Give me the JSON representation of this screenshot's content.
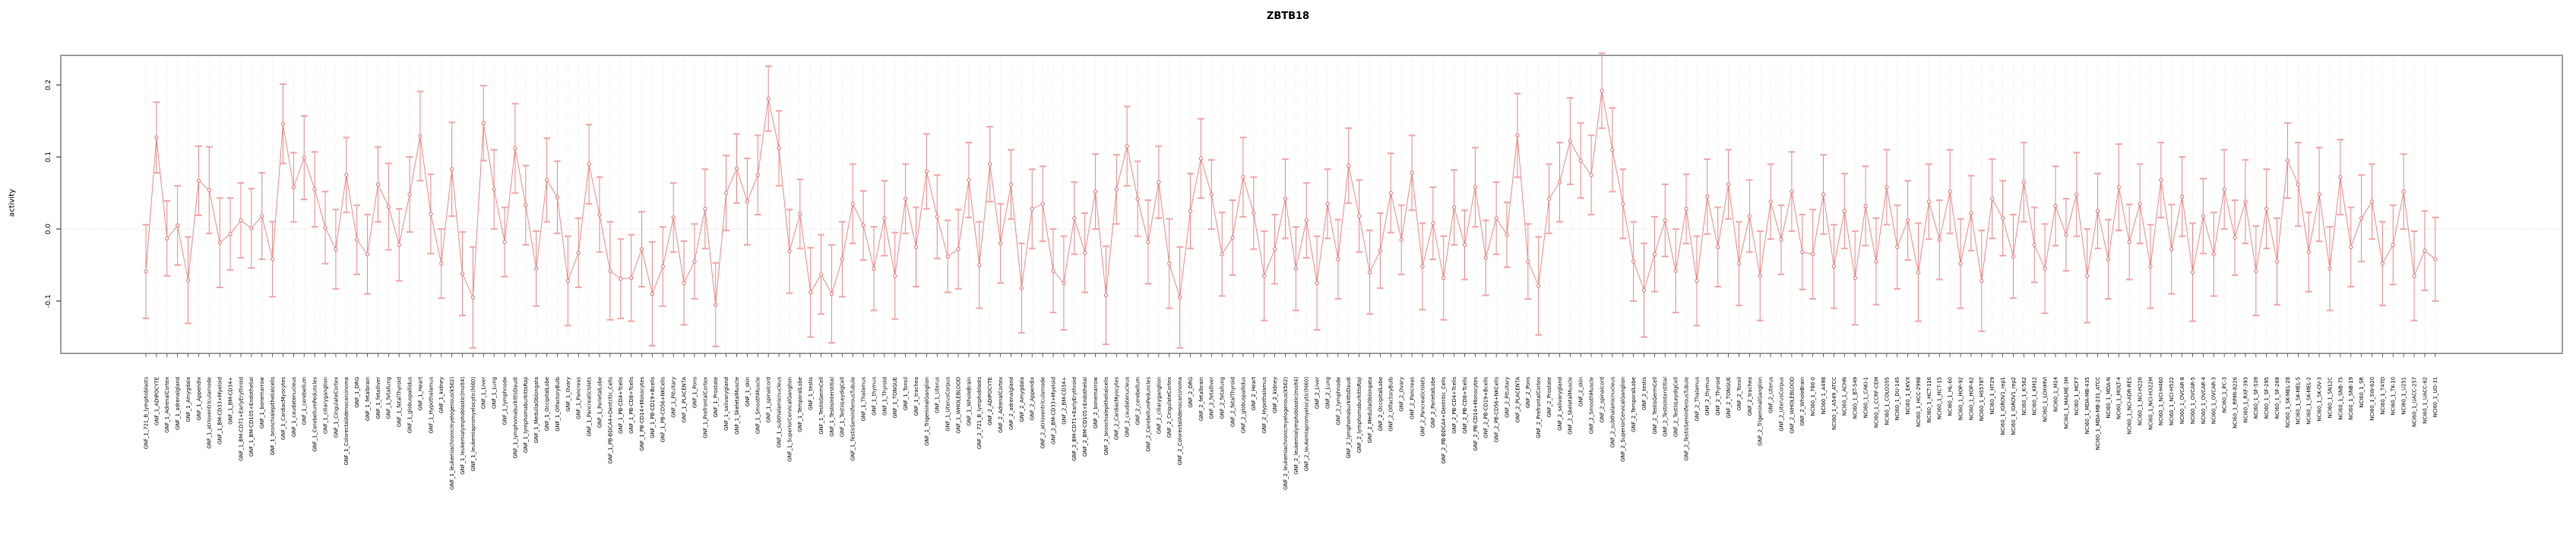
{
  "title": "ZBTB18",
  "chart_data": {
    "type": "line",
    "title": "ZBTB18",
    "subtitle": "",
    "xlabel": "",
    "ylabel": "activity",
    "legend": "none",
    "grid": "vertical dotted line per category; horizontal dotted line at 0",
    "marker": "open-circle with symmetric error bars and caps",
    "ylim": [
      -0.173,
      0.241
    ],
    "yticks": {
      "values": [
        0.2,
        0.1,
        0.0,
        -0.1
      ],
      "labels": [
        "0.2",
        "0.1",
        "0.0",
        "-0.1"
      ]
    },
    "colors": {
      "series": "#ee7d7d",
      "error_bar": "#ef8585",
      "cap": "#f3a8a8",
      "marker_stroke": "#e97070",
      "marker_fill": "#ffffff",
      "gridline": "#d9d9d9",
      "zero_line": "#c9c9c9",
      "frame": "#9e9e9e",
      "tick": "#444444",
      "text": "#000000"
    },
    "categories": [
      "GNF_1_721_B_lymphoblasts",
      "GNF_1_ADIPOCYTE",
      "GNF_1_AdrenalCortex",
      "GNF_1_adrenalgland",
      "GNF_1_Amygdala",
      "GNF_1_Appendix",
      "GNF_1_atrioventricularnode",
      "GNF_1_BM-CD33+Myeloid",
      "GNF_1_BM-CD34+",
      "GNF_1_BM-CD71+EarlyErythroid",
      "GNF_1_BM-CD105+Endothelial",
      "GNF_1_bonemarrow",
      "GNF_1_bronchialepithelialcells",
      "GNF_1_CardiacMyocytes",
      "GNF_1_caudatenucleus",
      "GNF_1_cerebellum",
      "GNF_1_CerebellumPeduncles",
      "GNF_1_ciliaryganglion",
      "GNF_1_CingulateCortex",
      "GNF_1_ColorectalAdenocarcinoma",
      "GNF_1_DRG",
      "GNF_1_fetalbrain",
      "GNF_1_fetalliver",
      "GNF_1_fetallung",
      "GNF_1_fetalThyroid",
      "GNF_1_globuspallidus",
      "GNF_1_Heart",
      "GNF_1_Hypothalamus",
      "GNF_1_kidney",
      "GNF_1_leukemiachronicmyelogenous(k562)",
      "GNF_1_leukemialymphoblastic(molt4)",
      "GNF_1_leukemiapromyelocytic(hl60)",
      "GNF_1_Liver",
      "GNF_1_Lung",
      "GNF_1_lymphnode",
      "GNF_1_lymphomaburkittsDaudi",
      "GNF_1_lymphomaburkittsRaji",
      "GNF_1_MedullaOblongata",
      "GNF_1_OccipitalLobe",
      "GNF_1_OlfactoryBulb",
      "GNF_1_Ovary",
      "GNF_1_Pancreas",
      "GNF_1_PancreaticIslets",
      "GNF_1_ParietalLobe",
      "GNF_1_PB-BDCA4+Dentritic_Cells",
      "GNF_1_PB-CD4+Tcells",
      "GNF_1_PB-CD8+Tcells",
      "GNF_1_PB-CD14+Monocytes",
      "GNF_1_PB-CD19+Bcells",
      "GNF_1_PB-CD56+NKCells",
      "GNF_1_Pituitary",
      "GNF_1_PLACENTA",
      "GNF_1_Pons",
      "GNF_1_PrefrontalCortex",
      "GNF_1_Prostate",
      "GNF_1_salivarygland",
      "GNF_1_SkeletalMuscle",
      "GNF_1_skin",
      "GNF_1_SmoothMuscle",
      "GNF_1_spinalcord",
      "GNF_1_subthalamicnucleus",
      "GNF_1_SuperiorCervicalGanglion",
      "GNF_1_TemporalLobe",
      "GNF_1_testis",
      "GNF_1_TestisGermCell",
      "GNF_1_TestisInterstitial",
      "GNF_1_TestisLeydigCell",
      "GNF_1_TestisSeminiferousTubule",
      "GNF_1_Thalamus",
      "GNF_1_thymus",
      "GNF_1_Thyroid",
      "GNF_1_TONGUE",
      "GNF_1_Tonsil",
      "GNF_1_trachea",
      "GNF_1_TrigeminalGanglion",
      "GNF_1_Uterus",
      "GNF_1_UterusCorpus",
      "GNF_1_WHOLEBLOOD",
      "GNF_1_WholeBrain",
      "GNF_2_721_B_lymphoblasts",
      "GNF_2_ADIPOCYTE",
      "GNF_2_AdrenalCortex",
      "GNF_2_adrenalgland",
      "GNF_2_Amygdala",
      "GNF_2_Appendix",
      "GNF_2_atrioventricularnode",
      "GNF_2_BM-CD33+Myeloid",
      "GNF_2_BM-CD34+",
      "GNF_2_BM-CD71+EarlyErythroid",
      "GNF_2_BM-CD105+Endothelial",
      "GNF_2_bonemarrow",
      "GNF_2_bronchialepithelialcells",
      "GNF_2_CardiacMyocytes",
      "GNF_2_caudatenucleus",
      "GNF_2_cerebellum",
      "GNF_2_CerebellumPeduncles",
      "GNF_2_ciliaryganglion",
      "GNF_2_CingulateCortex",
      "GNF_2_ColorectalAdenocarcinoma",
      "GNF_2_DRG",
      "GNF_2_fetalbrain",
      "GNF_2_fetalliver",
      "GNF_2_fetallung",
      "GNF_2_fetalThyroid",
      "GNF_2_globuspallidus",
      "GNF_2_Heart",
      "GNF_2_Hypothalamus",
      "GNF_2_kidney",
      "GNF_2_leukemiachronicmyelogenous(k562)",
      "GNF_2_leukemialymphoblastic(molt4)",
      "GNF_2_leukemiapromyelocytic(hl60)",
      "GNF_2_Liver",
      "GNF_2_Lung",
      "GNF_2_lymphnode",
      "GNF_2_lymphomaburkittsDaudi",
      "GNF_2_lymphomaburkittsRaji",
      "GNF_2_MedullaOblongata",
      "GNF_2_OccipitalLobe",
      "GNF_2_OlfactoryBulb",
      "GNF_2_Ovary",
      "GNF_2_Pancreas",
      "GNF_2_PancreaticIslets",
      "GNF_2_ParietalLobe",
      "GNF_2_PB-BDCA4+Dentritic_Cells",
      "GNF_2_PB-CD4+Tcells",
      "GNF_2_PB-CD8+Tcells",
      "GNF_2_PB-CD14+Monocytes",
      "GNF_2_PB-CD19+Bcells",
      "GNF_2_PB-CD56+NKCells",
      "GNF_2_Pituitary",
      "GNF_2_PLACENTA",
      "GNF_2_Pons",
      "GNF_2_PrefrontalCortex",
      "GNF_2_Prostate",
      "GNF_2_salivarygland",
      "GNF_2_SkeletalMuscle",
      "GNF_2_skin",
      "GNF_2_SmoothMuscle",
      "GNF_2_spinalcord",
      "GNF_2_subthalamicnucleus",
      "GNF_2_SuperiorCervicalGanglion",
      "GNF_2_TemporalLobe",
      "GNF_2_testis",
      "GNF_2_TestisGermCell",
      "GNF_2_TestisInterstitial",
      "GNF_2_TestisLeydigCell",
      "GNF_2_TestisSeminiferousTubule",
      "GNF_2_Thalamus",
      "GNF_2_thymus",
      "GNF_2_Thyroid",
      "GNF_2_TONGUE",
      "GNF_2_Tonsil",
      "GNF_2_trachea",
      "GNF_2_TrigeminalGanglion",
      "GNF_2_Uterus",
      "GNF_2_UterusCorpus",
      "GNF_2_WHOLEBLOOD",
      "GNF_2_WholeBrain",
      "NCI60_1_786-0",
      "NCI60_1_A498",
      "NCI60_1_A549_ATCC",
      "NCI60_1_ACHN",
      "NCI60_1_BT-549",
      "NCI60_1_CAKI-1",
      "NCI60_1_CCRF-CEM",
      "NCI60_1_COLO205",
      "NCI60_1_DU-145",
      "NCI60_1_EKVX",
      "NCI60_1_HCC-2998",
      "NCI60_1_HCT-116",
      "NCI60_1_HCT-15",
      "NCI60_1_HL-60",
      "NCI60_1_HOP-92",
      "NCI60_1_HOP-62",
      "NCI60_1_HS578T",
      "NCI60_1_HT29",
      "NCI60_1_IGROV1_rep1",
      "NCI60_1_IGROV1_rep2",
      "NCI60_1_K-562",
      "NCI60_1_KM12",
      "NCI60_1_LOXIMVI",
      "NCI60_1_M14",
      "NCI60_1_MALME-3M",
      "NCI60_1_MCF7",
      "NCI60_1_MDA-MB-435",
      "NCI60_1_MDA-MB-231_ATCC",
      "NCI60_1_MDA-N",
      "NCI60_1_MOLT-4",
      "NCI60_1_NCI-ADR-RES",
      "NCI60_1_NCI-H226",
      "NCI60_1_NCI-H322M",
      "NCI60_1_NCI-H460",
      "NCI60_1_NCI-H522",
      "NCI60_1_OVCAR-8",
      "NCI60_1_OVCAR-5",
      "NCI60_1_OVCAR-4",
      "NCI60_1_OVCAR-3",
      "NCI60_1_PC-3",
      "NCI60_1_RPMI-8226",
      "NCI60_1_RXF-393",
      "NCI60_1_SF-539",
      "NCI60_1_SF-295",
      "NCI60_1_SF-268",
      "NCI60_1_SK-MEL-28",
      "NCI60_1_SK-MEL-5",
      "NCI60_1_SK-MEL-2",
      "NCI60_1_SK-OV-3",
      "NCI60_1_SN12C",
      "NCI60_1_SNB-75",
      "NCI60_1_SNB-19",
      "NCI60_1_SR",
      "NCI60_1_SW-620",
      "NCI60_1_T47D",
      "NCI60_1_TK-10",
      "NCI60_1_U251",
      "NCI60_1_UACC-257",
      "NCI60_1_UACC-62",
      "NCI60_1_UO-31"
    ],
    "values": [
      -0.059,
      0.127,
      -0.013,
      0.005,
      -0.071,
      0.067,
      0.054,
      -0.019,
      -0.007,
      0.012,
      0.001,
      0.018,
      -0.042,
      0.146,
      0.058,
      0.099,
      0.055,
      0.002,
      -0.028,
      0.075,
      -0.015,
      -0.035,
      0.062,
      0.031,
      -0.022,
      0.048,
      0.129,
      0.021,
      -0.048,
      0.083,
      -0.062,
      -0.095,
      0.147,
      0.055,
      -0.018,
      0.112,
      0.033,
      -0.055,
      0.068,
      0.044,
      -0.072,
      -0.033,
      0.09,
      0.02,
      -0.058,
      -0.069,
      -0.068,
      -0.028,
      -0.09,
      -0.052,
      0.016,
      -0.075,
      -0.045,
      0.028,
      -0.105,
      0.05,
      0.084,
      0.038,
      0.075,
      0.181,
      0.112,
      -0.031,
      0.021,
      -0.088,
      -0.063,
      -0.09,
      -0.042,
      0.035,
      0.005,
      -0.055,
      0.015,
      -0.065,
      0.042,
      -0.025,
      0.08,
      0.017,
      -0.038,
      -0.028,
      0.068,
      -0.05,
      0.09,
      -0.02,
      0.062,
      -0.082,
      0.028,
      0.035,
      -0.058,
      -0.075,
      0.015,
      -0.033,
      0.052,
      -0.092,
      0.055,
      0.115,
      0.042,
      -0.018,
      0.065,
      -0.048,
      -0.095,
      0.025,
      0.098,
      0.048,
      -0.035,
      -0.012,
      0.072,
      0.022,
      -0.065,
      -0.028,
      0.042,
      -0.055,
      0.012,
      -0.075,
      0.035,
      -0.042,
      0.088,
      0.018,
      -0.06,
      -0.03,
      0.05,
      -0.015,
      0.078,
      -0.052,
      0.008,
      -0.068,
      0.03,
      -0.022,
      0.058,
      -0.04,
      0.015,
      -0.008,
      0.13,
      -0.045,
      -0.079,
      0.042,
      0.065,
      0.122,
      0.095,
      0.075,
      0.192,
      0.11,
      0.035,
      -0.045,
      -0.085,
      -0.035,
      0.012,
      -0.058,
      0.028,
      -0.072,
      0.045,
      -0.025,
      0.062,
      -0.048,
      0.018,
      -0.065,
      0.038,
      -0.015,
      0.052,
      -0.032,
      -0.035,
      0.048,
      -0.052,
      0.025,
      -0.068,
      0.032,
      -0.045,
      0.058,
      -0.025,
      0.012,
      -0.06,
      0.038,
      -0.015,
      0.052,
      -0.048,
      0.022,
      -0.072,
      0.042,
      0.015,
      -0.038,
      0.065,
      -0.022,
      -0.055,
      0.032,
      -0.008,
      0.048,
      -0.065,
      0.025,
      -0.042,
      0.058,
      -0.018,
      0.035,
      -0.052,
      0.068,
      -0.028,
      0.045,
      -0.06,
      0.018,
      -0.035,
      0.055,
      -0.012,
      0.038,
      -0.058,
      0.028,
      -0.045,
      0.095,
      0.062,
      -0.032,
      0.048,
      -0.055,
      0.072,
      -0.025,
      0.015,
      0.038,
      -0.048,
      -0.022,
      0.052,
      -0.065,
      -0.03,
      -0.042
    ],
    "error": [
      0.065,
      0.049,
      0.052,
      0.055,
      0.06,
      0.048,
      0.06,
      0.062,
      0.05,
      0.052,
      0.055,
      0.06,
      0.052,
      0.055,
      0.048,
      0.058,
      0.052,
      0.05,
      0.055,
      0.052,
      0.048,
      0.055,
      0.052,
      0.06,
      0.05,
      0.052,
      0.062,
      0.055,
      0.048,
      0.065,
      0.058,
      0.07,
      0.052,
      0.055,
      0.048,
      0.062,
      0.055,
      0.052,
      0.058,
      0.05,
      0.062,
      0.048,
      0.055,
      0.052,
      0.068,
      0.055,
      0.06,
      0.052,
      0.072,
      0.055,
      0.048,
      0.058,
      0.052,
      0.055,
      0.058,
      0.052,
      0.048,
      0.06,
      0.055,
      0.045,
      0.052,
      0.058,
      0.048,
      0.062,
      0.055,
      0.068,
      0.052,
      0.055,
      0.048,
      0.058,
      0.052,
      0.06,
      0.048,
      0.055,
      0.052,
      0.058,
      0.05,
      0.055,
      0.052,
      0.06,
      0.052,
      0.055,
      0.048,
      0.062,
      0.055,
      0.052,
      0.058,
      0.065,
      0.05,
      0.055,
      0.052,
      0.068,
      0.048,
      0.055,
      0.052,
      0.058,
      0.05,
      0.062,
      0.07,
      0.052,
      0.055,
      0.048,
      0.058,
      0.052,
      0.055,
      0.05,
      0.062,
      0.048,
      0.055,
      0.058,
      0.052,
      0.065,
      0.048,
      0.055,
      0.052,
      0.05,
      0.058,
      0.052,
      0.055,
      0.048,
      0.052,
      0.06,
      0.05,
      0.058,
      0.052,
      0.048,
      0.055,
      0.052,
      0.05,
      0.045,
      0.058,
      0.052,
      0.068,
      0.048,
      0.055,
      0.06,
      0.052,
      0.055,
      0.052,
      0.058,
      0.048,
      0.055,
      0.065,
      0.052,
      0.05,
      0.058,
      0.048,
      0.062,
      0.052,
      0.055,
      0.048,
      0.058,
      0.05,
      0.062,
      0.052,
      0.048,
      0.055,
      0.052,
      0.062,
      0.055,
      0.058,
      0.052,
      0.065,
      0.055,
      0.06,
      0.052,
      0.058,
      0.055,
      0.068,
      0.052,
      0.055,
      0.058,
      0.062,
      0.052,
      0.07,
      0.055,
      0.052,
      0.058,
      0.055,
      0.052,
      0.062,
      0.055,
      0.05,
      0.058,
      0.065,
      0.052,
      0.055,
      0.06,
      0.052,
      0.055,
      0.058,
      0.052,
      0.062,
      0.055,
      0.068,
      0.052,
      0.058,
      0.055,
      0.052,
      0.058,
      0.062,
      0.055,
      0.06,
      0.052,
      0.058,
      0.055,
      0.065,
      0.058,
      0.052,
      0.055,
      0.06,
      0.052,
      0.058,
      0.055,
      0.052,
      0.062,
      0.055,
      0.058
    ]
  }
}
